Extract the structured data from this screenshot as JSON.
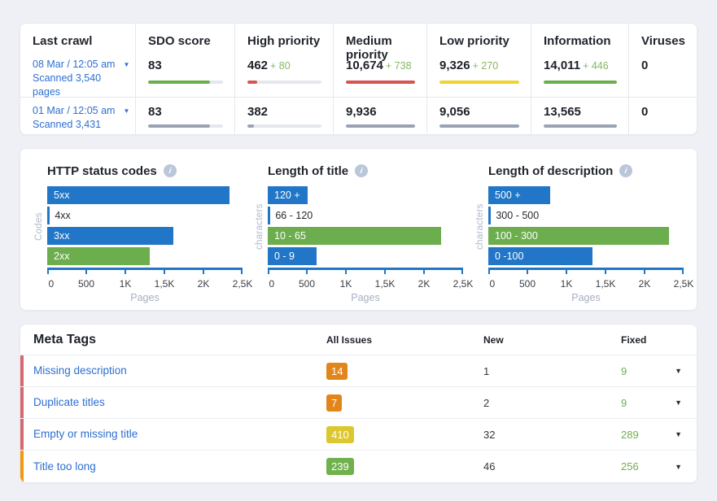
{
  "palette": {
    "blue": "#2176c7",
    "green": "#6cad4e"
  },
  "summary": {
    "columns": [
      "Last crawl",
      "SDO score",
      "High priority",
      "Medium priority",
      "Low priority",
      "Information",
      "Viruses"
    ],
    "rows": [
      {
        "date": "08 Mar / 12:05 am",
        "scanned": "Scanned 3,540 pages",
        "metrics": [
          {
            "value": "83",
            "delta": "",
            "bar": {
              "pct": 83,
              "color": "#6cad4e"
            }
          },
          {
            "value": "462",
            "delta": "+ 80",
            "bar": {
              "pct": 13,
              "color": "#d45552"
            }
          },
          {
            "value": "10,674",
            "delta": "+ 738",
            "bar": {
              "pct": 100,
              "color": "#d45552"
            }
          },
          {
            "value": "9,326",
            "delta": "+ 270",
            "bar": {
              "pct": 100,
              "color": "#f1d232"
            }
          },
          {
            "value": "14,011",
            "delta": "+ 446",
            "bar": {
              "pct": 100,
              "color": "#6cad4e"
            }
          },
          {
            "value": "0",
            "delta": "",
            "bar": {
              "pct": 0,
              "color": "none"
            }
          }
        ]
      },
      {
        "date": "01 Mar / 12:05 am",
        "scanned": "Scanned 3,431 pages",
        "metrics": [
          {
            "value": "83",
            "delta": "",
            "bar": {
              "pct": 83,
              "color": "#9aa3b4"
            }
          },
          {
            "value": "382",
            "delta": "",
            "bar": {
              "pct": 9,
              "color": "#9aa3b4"
            }
          },
          {
            "value": "9,936",
            "delta": "",
            "bar": {
              "pct": 100,
              "color": "#9aa3b4"
            }
          },
          {
            "value": "9,056",
            "delta": "",
            "bar": {
              "pct": 100,
              "color": "#9aa3b4"
            }
          },
          {
            "value": "13,565",
            "delta": "",
            "bar": {
              "pct": 100,
              "color": "#9aa3b4"
            }
          },
          {
            "value": "0",
            "delta": "",
            "bar": {
              "pct": 0,
              "color": "none"
            }
          }
        ]
      }
    ]
  },
  "chart_data": [
    {
      "type": "bar",
      "title": "HTTP status codes",
      "ylabel": "Codes",
      "xlabel": "Pages",
      "categories": [
        "5xx",
        "4xx",
        "3xx",
        "2xx"
      ],
      "values": [
        2330,
        35,
        1610,
        1310
      ],
      "colors": [
        "blue",
        "blue",
        "blue",
        "green"
      ],
      "xlim": [
        0,
        2500
      ],
      "xticks": [
        "0",
        "500",
        "1K",
        "1,5K",
        "2K",
        "2,5K"
      ],
      "grid": false,
      "legend": "none"
    },
    {
      "type": "bar",
      "title": "Length of title",
      "ylabel": "characters",
      "xlabel": "Pages",
      "categories": [
        "120 +",
        "66 - 120",
        "10 - 65",
        "0 - 9"
      ],
      "values": [
        510,
        35,
        2220,
        620
      ],
      "colors": [
        "blue",
        "blue",
        "green",
        "blue"
      ],
      "xlim": [
        0,
        2500
      ],
      "xticks": [
        "0",
        "500",
        "1K",
        "1,5K",
        "2K",
        "2,5K"
      ],
      "grid": false,
      "legend": "none"
    },
    {
      "type": "bar",
      "title": "Length of description",
      "ylabel": "characters",
      "xlabel": "Pages",
      "categories": [
        "500 +",
        "300 - 500",
        "100 - 300",
        "0 -100"
      ],
      "values": [
        790,
        35,
        2310,
        1330
      ],
      "colors": [
        "blue",
        "blue",
        "green",
        "blue"
      ],
      "xlim": [
        0,
        2500
      ],
      "xticks": [
        "0",
        "500",
        "1K",
        "1,5K",
        "2K",
        "2,5K"
      ],
      "grid": false,
      "legend": "none"
    }
  ],
  "meta_tags": {
    "title": "Meta Tags",
    "columns": [
      "All Issues",
      "New",
      "Fixed"
    ],
    "rows": [
      {
        "name": "Missing description",
        "all_issues": "14",
        "badge_color": "#e2861c",
        "new": "1",
        "fixed": "9",
        "accent": "#d4696f"
      },
      {
        "name": "Duplicate titles",
        "all_issues": "7",
        "badge_color": "#e2861c",
        "new": "2",
        "fixed": "9",
        "accent": "#d4696f"
      },
      {
        "name": "Empty or missing title",
        "all_issues": "410",
        "badge_color": "#dcc72f",
        "new": "32",
        "fixed": "289",
        "accent": "#d4696f"
      },
      {
        "name": "Title too long",
        "all_issues": "239",
        "badge_color": "#6fb14c",
        "new": "46",
        "fixed": "256",
        "accent": "#f29a0d"
      }
    ]
  }
}
